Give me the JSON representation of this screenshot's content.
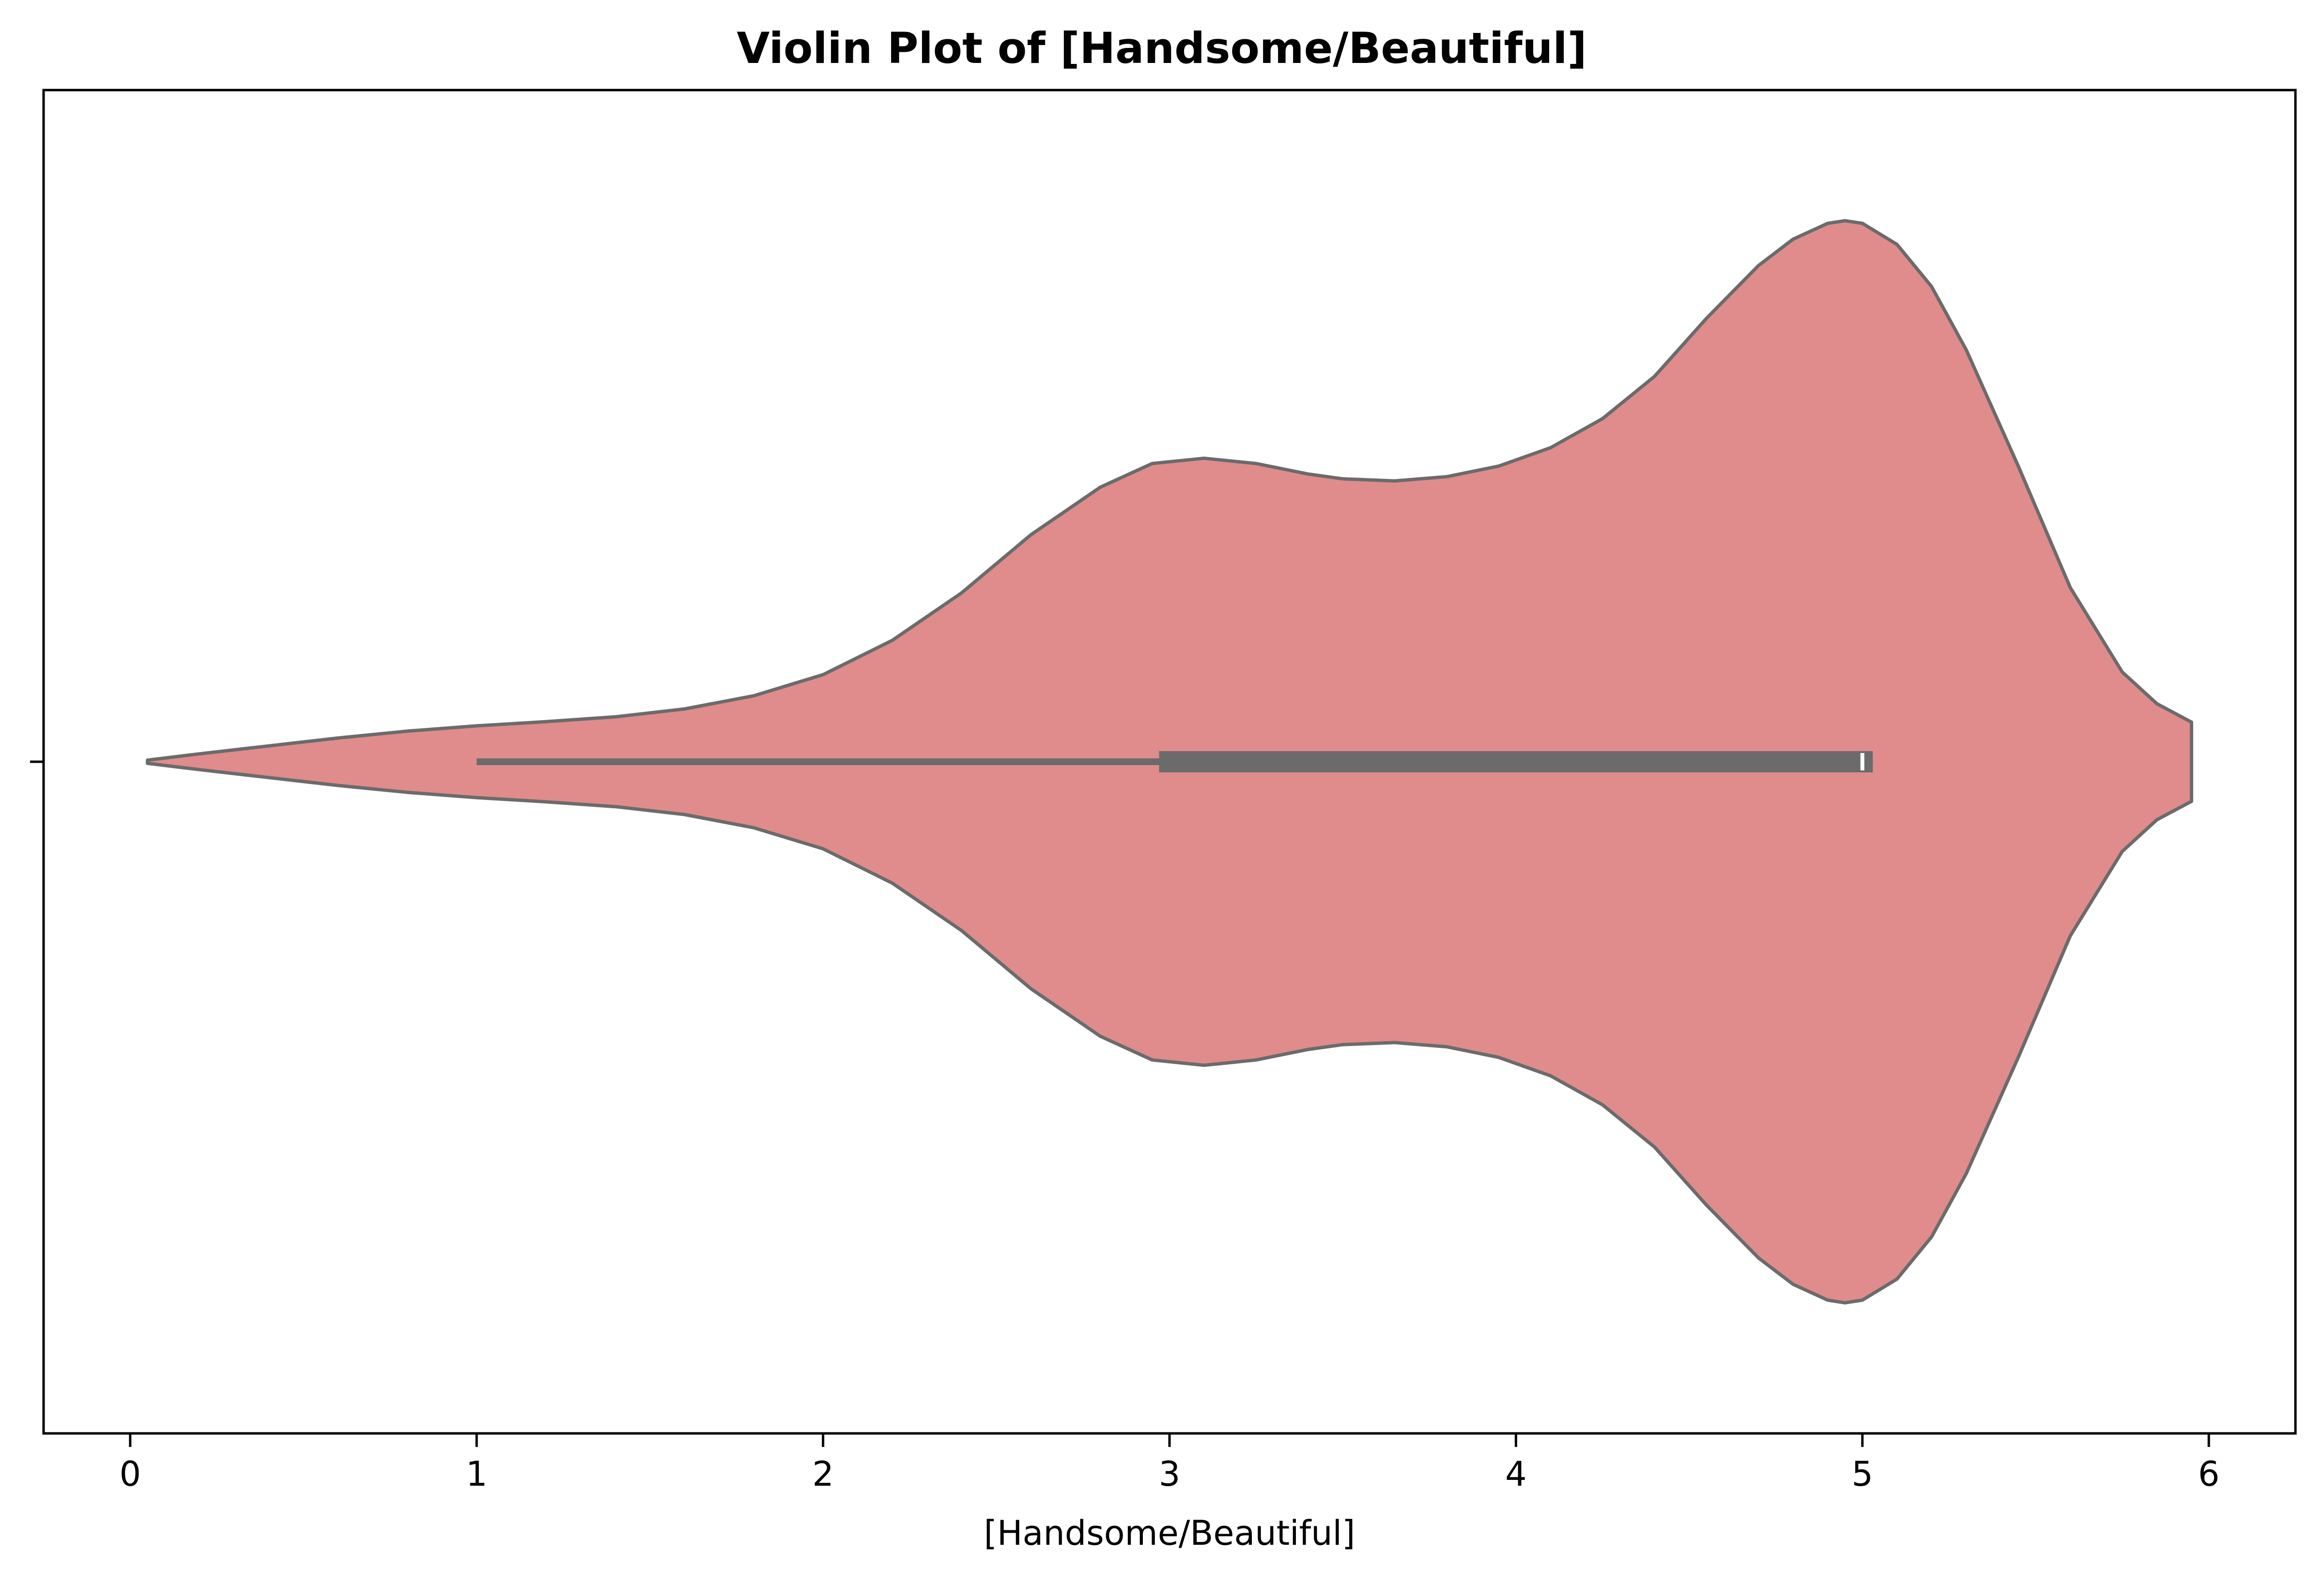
{
  "chart_data": {
    "type": "violin",
    "title": "Violin Plot of [Handsome/Beautiful]",
    "xlabel": "[Handsome/Beautiful]",
    "ylabel": "",
    "orientation": "horizontal",
    "xlim": [
      -0.25,
      6.25
    ],
    "xticks": [
      0,
      1,
      2,
      3,
      4,
      5,
      6
    ],
    "xtick_labels": [
      "0",
      "1",
      "2",
      "3",
      "4",
      "5",
      "6"
    ],
    "grid": false,
    "legend": "none",
    "series": [
      {
        "fill_color": "#e08c8c",
        "outline_color": "#6b6b6b",
        "density": {
          "x": [
            0.05,
            0.2,
            0.4,
            0.6,
            0.8,
            1.0,
            1.2,
            1.4,
            1.6,
            1.8,
            2.0,
            2.2,
            2.4,
            2.6,
            2.8,
            2.95,
            3.1,
            3.25,
            3.4,
            3.5,
            3.65,
            3.8,
            3.95,
            4.1,
            4.25,
            4.4,
            4.55,
            4.7,
            4.8,
            4.9,
            4.95,
            5.0,
            5.1,
            5.2,
            5.3,
            5.45,
            5.6,
            5.75,
            5.85,
            5.95
          ],
          "half_width": [
            0.003,
            0.015,
            0.03,
            0.045,
            0.058,
            0.068,
            0.076,
            0.085,
            0.1,
            0.125,
            0.165,
            0.23,
            0.32,
            0.43,
            0.52,
            0.565,
            0.575,
            0.565,
            0.545,
            0.536,
            0.532,
            0.54,
            0.56,
            0.595,
            0.65,
            0.73,
            0.84,
            0.94,
            0.99,
            1.02,
            1.025,
            1.02,
            0.98,
            0.9,
            0.78,
            0.56,
            0.33,
            0.17,
            0.11,
            0.075
          ]
        },
        "whisker_low": 1.0,
        "whisker_high": 5.03,
        "q1": 2.97,
        "q3": 5.03,
        "median": 5.0
      }
    ]
  }
}
